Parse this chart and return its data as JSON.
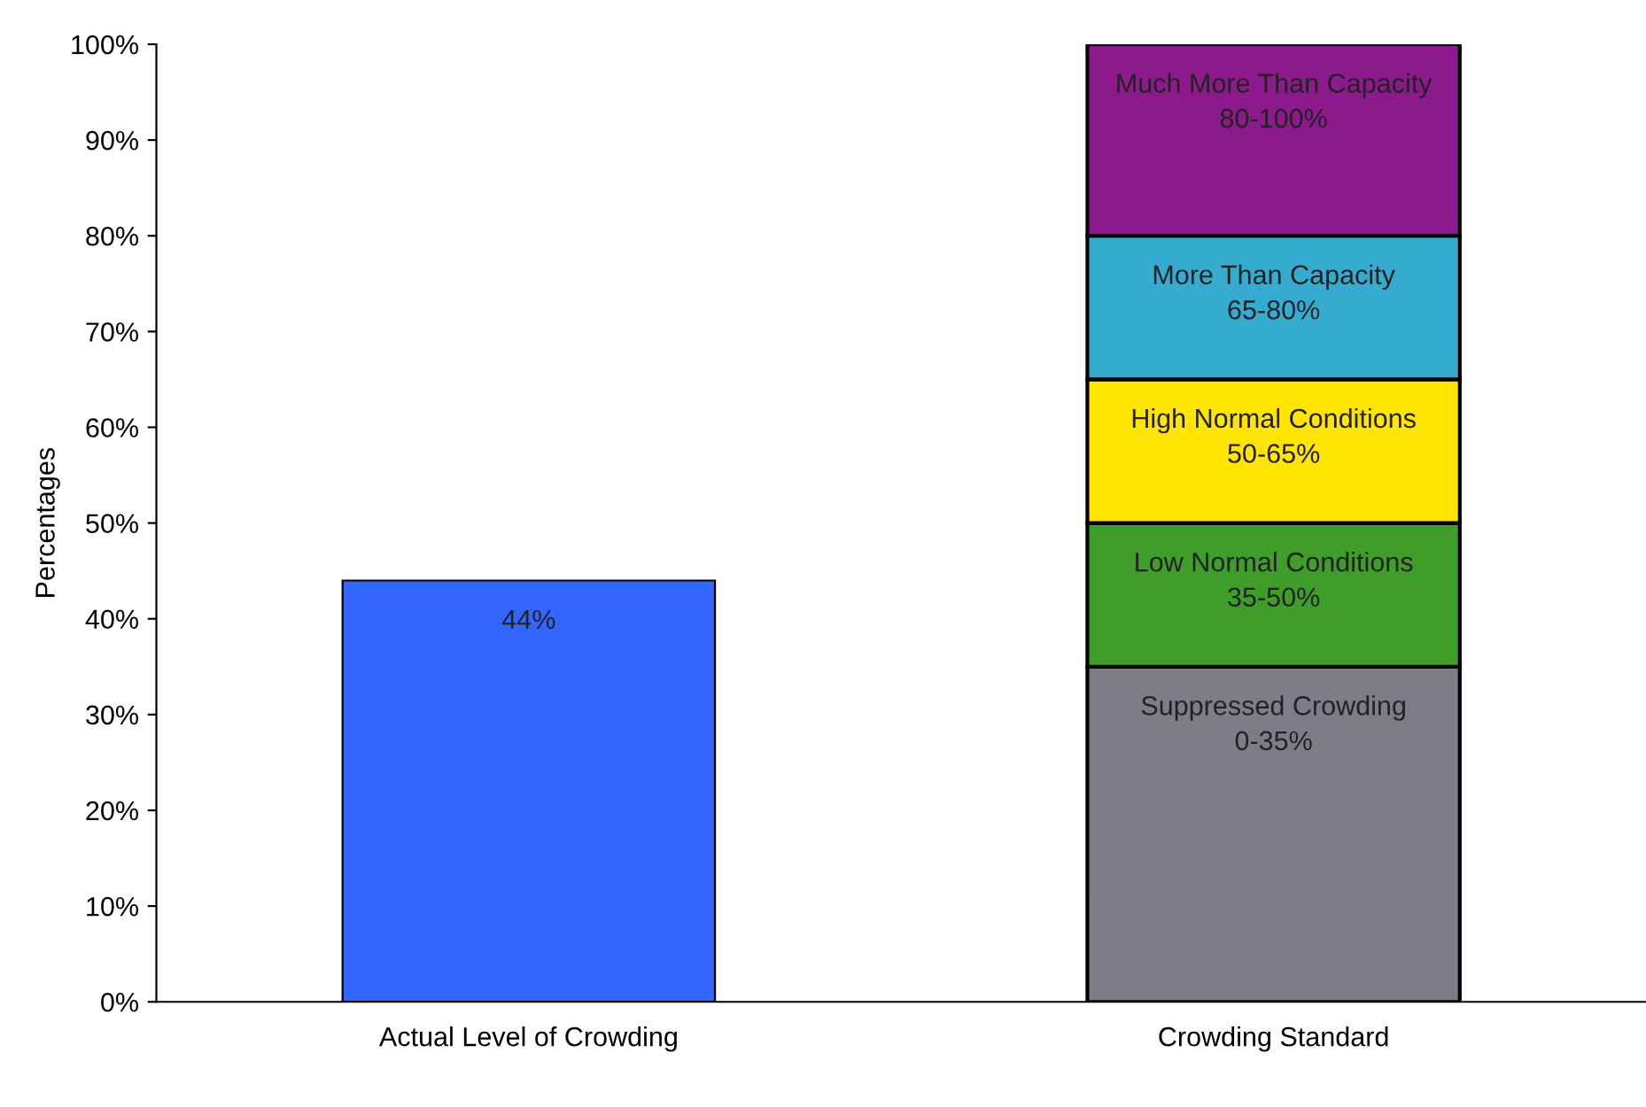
{
  "chart_data": {
    "type": "bar",
    "stacked": true,
    "ylabel": "Percentages",
    "categories": [
      "Actual Level of Crowding",
      "Crowding Standard"
    ],
    "ylim": [
      0,
      100
    ],
    "yticks": [
      {
        "value": 0,
        "label": "0%"
      },
      {
        "value": 10,
        "label": "10%"
      },
      {
        "value": 20,
        "label": "20%"
      },
      {
        "value": 30,
        "label": "30%"
      },
      {
        "value": 40,
        "label": "40%"
      },
      {
        "value": 50,
        "label": "50%"
      },
      {
        "value": 60,
        "label": "60%"
      },
      {
        "value": 70,
        "label": "70%"
      },
      {
        "value": 80,
        "label": "80%"
      },
      {
        "value": 90,
        "label": "90%"
      },
      {
        "value": 100,
        "label": "100%"
      }
    ],
    "grid": false,
    "legend": false,
    "series": [
      {
        "color": "#3366ff",
        "values": [
          44,
          null
        ],
        "value_labels": [
          "44%",
          null
        ]
      },
      {
        "name": "Suppressed Crowding\n0-35%",
        "color": "#7e7d87",
        "values": [
          null,
          35
        ]
      },
      {
        "name": "Low Normal Conditions\n35-50%",
        "color": "#3f9e2a",
        "values": [
          null,
          15
        ]
      },
      {
        "name": "High Normal Conditions\n50-65%",
        "color": "#ffe500",
        "values": [
          null,
          15
        ]
      },
      {
        "name": "More Than Capacity\n65-80%",
        "color": "#35abd0",
        "values": [
          null,
          15
        ]
      },
      {
        "name": "Much More Than Capacity\n80-100%",
        "color": "#8c1a8c",
        "values": [
          null,
          20
        ]
      }
    ]
  }
}
